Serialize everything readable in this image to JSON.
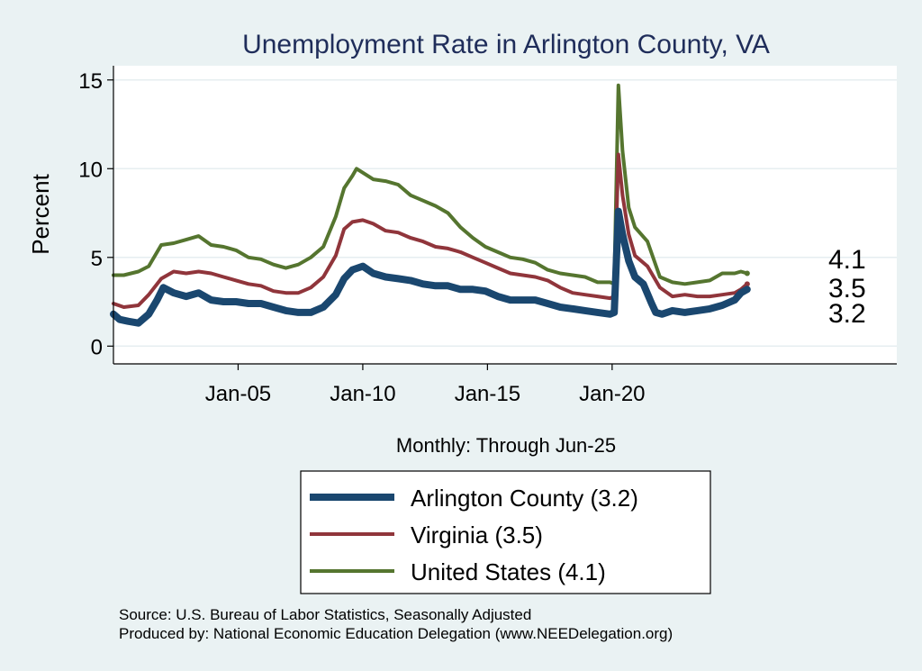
{
  "chart_data": {
    "type": "line",
    "title": "Unemployment Rate in Arlington  County, VA",
    "ylabel": "Percent",
    "xlabel": "Monthly: Through Jun-25",
    "ylim": [
      -1,
      15.8
    ],
    "xlim": [
      "2000-01",
      "2031-06"
    ],
    "yticks": [
      0,
      5,
      10,
      15
    ],
    "xticks": [
      {
        "label": "Jan-05",
        "date": "2005-01"
      },
      {
        "label": "Jan-10",
        "date": "2010-01"
      },
      {
        "label": "Jan-15",
        "date": "2015-01"
      },
      {
        "label": "Jan-20",
        "date": "2020-01"
      }
    ],
    "grid": true,
    "legend_position": "bottom",
    "series": [
      {
        "name": "Arlington  County (3.2)",
        "end_label": "3.2",
        "color": "#1a476f",
        "points": [
          [
            "2000-01",
            1.8
          ],
          [
            "2000-04",
            1.5
          ],
          [
            "2000-08",
            1.4
          ],
          [
            "2001-01",
            1.3
          ],
          [
            "2001-06",
            1.8
          ],
          [
            "2001-10",
            2.6
          ],
          [
            "2002-01",
            3.3
          ],
          [
            "2002-06",
            3.0
          ],
          [
            "2002-12",
            2.8
          ],
          [
            "2003-06",
            3.0
          ],
          [
            "2003-12",
            2.6
          ],
          [
            "2004-06",
            2.5
          ],
          [
            "2004-12",
            2.5
          ],
          [
            "2005-06",
            2.4
          ],
          [
            "2005-12",
            2.4
          ],
          [
            "2006-06",
            2.2
          ],
          [
            "2006-12",
            2.0
          ],
          [
            "2007-06",
            1.9
          ],
          [
            "2007-12",
            1.9
          ],
          [
            "2008-06",
            2.2
          ],
          [
            "2008-12",
            2.9
          ],
          [
            "2009-04",
            3.8
          ],
          [
            "2009-08",
            4.3
          ],
          [
            "2010-01",
            4.5
          ],
          [
            "2010-06",
            4.1
          ],
          [
            "2010-12",
            3.9
          ],
          [
            "2011-06",
            3.8
          ],
          [
            "2011-12",
            3.7
          ],
          [
            "2012-06",
            3.5
          ],
          [
            "2012-12",
            3.4
          ],
          [
            "2013-06",
            3.4
          ],
          [
            "2013-12",
            3.2
          ],
          [
            "2014-06",
            3.2
          ],
          [
            "2014-12",
            3.1
          ],
          [
            "2015-06",
            2.8
          ],
          [
            "2015-12",
            2.6
          ],
          [
            "2016-06",
            2.6
          ],
          [
            "2016-12",
            2.6
          ],
          [
            "2017-06",
            2.4
          ],
          [
            "2017-12",
            2.2
          ],
          [
            "2018-06",
            2.1
          ],
          [
            "2018-12",
            2.0
          ],
          [
            "2019-06",
            1.9
          ],
          [
            "2019-12",
            1.8
          ],
          [
            "2020-02",
            1.9
          ],
          [
            "2020-04",
            7.6
          ],
          [
            "2020-06",
            6.3
          ],
          [
            "2020-09",
            4.8
          ],
          [
            "2020-12",
            3.9
          ],
          [
            "2021-04",
            3.5
          ],
          [
            "2021-08",
            2.4
          ],
          [
            "2021-10",
            1.9
          ],
          [
            "2022-01",
            1.8
          ],
          [
            "2022-06",
            2.0
          ],
          [
            "2022-12",
            1.9
          ],
          [
            "2023-06",
            2.0
          ],
          [
            "2023-12",
            2.1
          ],
          [
            "2024-06",
            2.3
          ],
          [
            "2024-12",
            2.6
          ],
          [
            "2025-03",
            3.0
          ],
          [
            "2025-06",
            3.2
          ]
        ]
      },
      {
        "name": "Virginia (3.5)",
        "end_label": "3.5",
        "color": "#90353b",
        "points": [
          [
            "2000-01",
            2.4
          ],
          [
            "2000-06",
            2.2
          ],
          [
            "2001-01",
            2.3
          ],
          [
            "2001-06",
            2.9
          ],
          [
            "2001-12",
            3.8
          ],
          [
            "2002-06",
            4.2
          ],
          [
            "2002-12",
            4.1
          ],
          [
            "2003-06",
            4.2
          ],
          [
            "2003-12",
            4.1
          ],
          [
            "2004-06",
            3.9
          ],
          [
            "2004-12",
            3.7
          ],
          [
            "2005-06",
            3.5
          ],
          [
            "2005-12",
            3.4
          ],
          [
            "2006-06",
            3.1
          ],
          [
            "2006-12",
            3.0
          ],
          [
            "2007-06",
            3.0
          ],
          [
            "2007-12",
            3.3
          ],
          [
            "2008-06",
            3.9
          ],
          [
            "2008-12",
            5.1
          ],
          [
            "2009-04",
            6.6
          ],
          [
            "2009-08",
            7.0
          ],
          [
            "2010-01",
            7.1
          ],
          [
            "2010-06",
            6.9
          ],
          [
            "2010-12",
            6.5
          ],
          [
            "2011-06",
            6.4
          ],
          [
            "2011-12",
            6.1
          ],
          [
            "2012-06",
            5.9
          ],
          [
            "2012-12",
            5.6
          ],
          [
            "2013-06",
            5.5
          ],
          [
            "2013-12",
            5.3
          ],
          [
            "2014-06",
            5.0
          ],
          [
            "2014-12",
            4.7
          ],
          [
            "2015-06",
            4.4
          ],
          [
            "2015-12",
            4.1
          ],
          [
            "2016-06",
            4.0
          ],
          [
            "2016-12",
            3.9
          ],
          [
            "2017-06",
            3.7
          ],
          [
            "2017-12",
            3.3
          ],
          [
            "2018-06",
            3.0
          ],
          [
            "2018-12",
            2.9
          ],
          [
            "2019-06",
            2.8
          ],
          [
            "2019-12",
            2.7
          ],
          [
            "2020-02",
            2.8
          ],
          [
            "2020-04",
            10.8
          ],
          [
            "2020-06",
            8.5
          ],
          [
            "2020-09",
            6.3
          ],
          [
            "2020-12",
            5.1
          ],
          [
            "2021-06",
            4.5
          ],
          [
            "2021-12",
            3.3
          ],
          [
            "2022-06",
            2.8
          ],
          [
            "2022-12",
            2.9
          ],
          [
            "2023-06",
            2.8
          ],
          [
            "2023-12",
            2.8
          ],
          [
            "2024-06",
            2.9
          ],
          [
            "2024-12",
            3.0
          ],
          [
            "2025-03",
            3.2
          ],
          [
            "2025-06",
            3.5
          ]
        ]
      },
      {
        "name": "United States (4.1)",
        "end_label": "4.1",
        "color": "#55752f",
        "points": [
          [
            "2000-01",
            4.0
          ],
          [
            "2000-06",
            4.0
          ],
          [
            "2001-01",
            4.2
          ],
          [
            "2001-06",
            4.5
          ],
          [
            "2001-12",
            5.7
          ],
          [
            "2002-06",
            5.8
          ],
          [
            "2002-12",
            6.0
          ],
          [
            "2003-06",
            6.2
          ],
          [
            "2003-12",
            5.7
          ],
          [
            "2004-06",
            5.6
          ],
          [
            "2004-12",
            5.4
          ],
          [
            "2005-06",
            5.0
          ],
          [
            "2005-12",
            4.9
          ],
          [
            "2006-06",
            4.6
          ],
          [
            "2006-12",
            4.4
          ],
          [
            "2007-06",
            4.6
          ],
          [
            "2007-12",
            5.0
          ],
          [
            "2008-06",
            5.6
          ],
          [
            "2008-12",
            7.3
          ],
          [
            "2009-04",
            8.9
          ],
          [
            "2009-08",
            9.6
          ],
          [
            "2009-10",
            10.0
          ],
          [
            "2010-06",
            9.4
          ],
          [
            "2010-12",
            9.3
          ],
          [
            "2011-06",
            9.1
          ],
          [
            "2011-12",
            8.5
          ],
          [
            "2012-06",
            8.2
          ],
          [
            "2012-12",
            7.9
          ],
          [
            "2013-06",
            7.5
          ],
          [
            "2013-12",
            6.7
          ],
          [
            "2014-06",
            6.1
          ],
          [
            "2014-12",
            5.6
          ],
          [
            "2015-06",
            5.3
          ],
          [
            "2015-12",
            5.0
          ],
          [
            "2016-06",
            4.9
          ],
          [
            "2016-12",
            4.7
          ],
          [
            "2017-06",
            4.3
          ],
          [
            "2017-12",
            4.1
          ],
          [
            "2018-06",
            4.0
          ],
          [
            "2018-12",
            3.9
          ],
          [
            "2019-06",
            3.6
          ],
          [
            "2019-12",
            3.6
          ],
          [
            "2020-02",
            3.5
          ],
          [
            "2020-04",
            14.7
          ],
          [
            "2020-06",
            11.0
          ],
          [
            "2020-09",
            7.8
          ],
          [
            "2020-12",
            6.7
          ],
          [
            "2021-06",
            5.9
          ],
          [
            "2021-12",
            3.9
          ],
          [
            "2022-06",
            3.6
          ],
          [
            "2022-12",
            3.5
          ],
          [
            "2023-06",
            3.6
          ],
          [
            "2023-12",
            3.7
          ],
          [
            "2024-06",
            4.1
          ],
          [
            "2024-12",
            4.1
          ],
          [
            "2025-03",
            4.2
          ],
          [
            "2025-06",
            4.1
          ]
        ]
      }
    ],
    "source_lines": [
      "Source: U.S. Bureau of Labor Statistics, Seasonally Adjusted",
      "Produced by: National Economic Education Delegation (www.NEEDelegation.org)"
    ]
  }
}
